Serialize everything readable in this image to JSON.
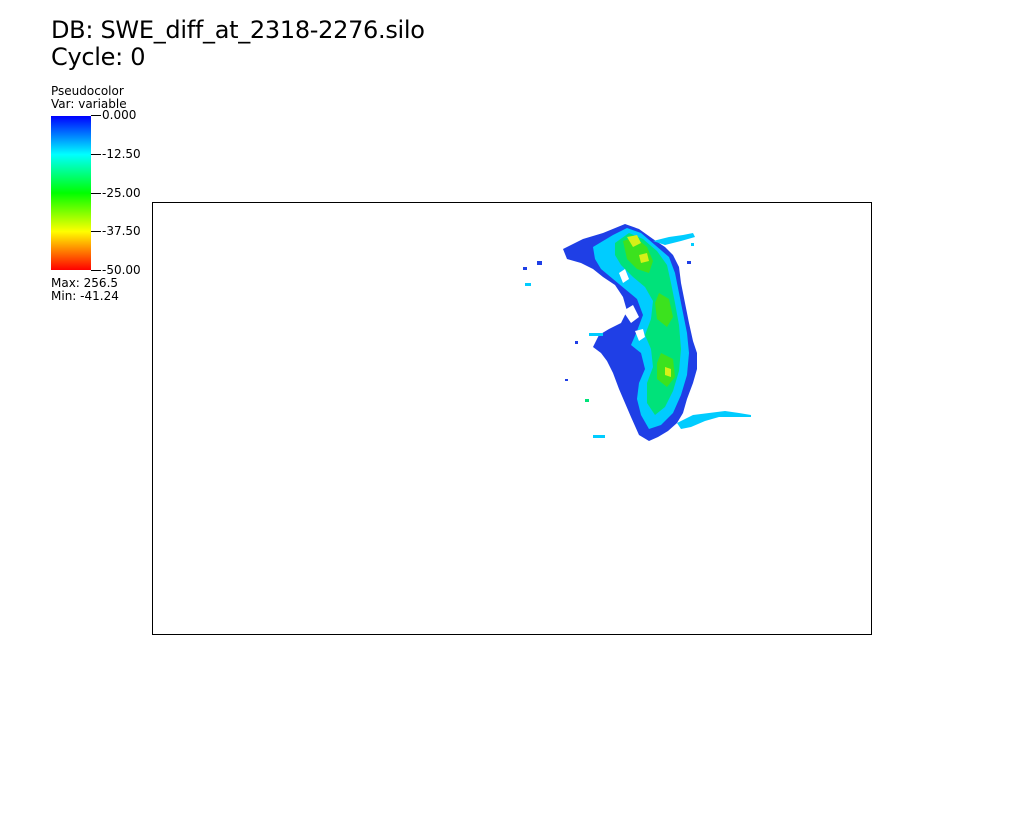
{
  "header": {
    "db_label": "DB: SWE_diff_at_2318-2276.silo",
    "cycle_label": "Cycle: 0"
  },
  "legend": {
    "plot_type": "Pseudocolor",
    "var_label": "Var: variable",
    "ticks": [
      "0.000",
      "-12.50",
      "-25.00",
      "-37.50",
      "-50.00"
    ],
    "max_label": "Max:  256.5",
    "min_label": "Min: -41.24",
    "colormap": [
      "#0000ff",
      "#00ffff",
      "#00ff00",
      "#ffff00",
      "#ff0000"
    ]
  },
  "field": {
    "color_scale": {
      "min": -50,
      "max": 0
    },
    "region_colors": {
      "deep": "#1f3fe6",
      "light": "#00ccff",
      "mid": "#00e27a",
      "green": "#3ce21e",
      "yellow": "#d8f018"
    }
  }
}
